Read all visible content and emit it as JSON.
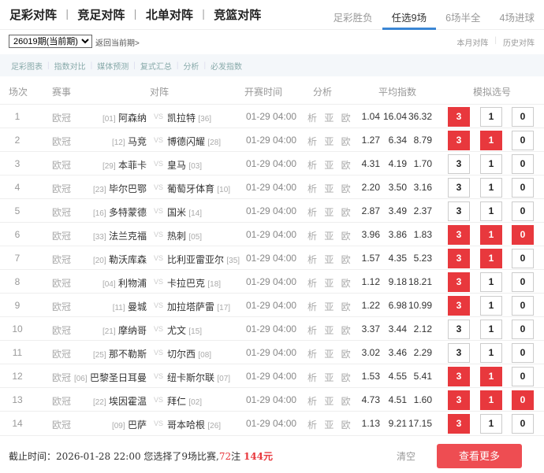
{
  "nav": {
    "main_tabs": [
      "足彩对阵",
      "竞足对阵",
      "北单对阵",
      "竞篮对阵"
    ],
    "sub_tabs": [
      "足彩胜负",
      "任选9场",
      "6场半全",
      "4场进球"
    ],
    "active_sub_tab": "任选9场"
  },
  "toolbar": {
    "period_select": "26019期(当前期)",
    "back_link": "返回当前期>",
    "links": [
      "本月对阵",
      "历史对阵"
    ]
  },
  "tools": [
    "足彩图表",
    "指数对比",
    "媒体预测",
    "复式汇总",
    "分析",
    "必发指数"
  ],
  "table": {
    "headers": [
      "场次",
      "赛事",
      "对阵",
      "开赛时间",
      "分析",
      "平均指数",
      "模拟选号"
    ],
    "vs": "VS",
    "analysis": "析 亚 欧",
    "options": [
      "3",
      "1",
      "0"
    ],
    "rows": [
      {
        "no": "1",
        "league": "欧冠",
        "home_rank": "[01]",
        "home": "阿森纳",
        "away": "凯拉特",
        "away_rank": "[36]",
        "time": "01-29 04:00",
        "odds": [
          "1.04",
          "16.04",
          "36.32"
        ],
        "selected": [
          "3"
        ]
      },
      {
        "no": "2",
        "league": "欧冠",
        "home_rank": "[12]",
        "home": "马竞",
        "away": "博德闪耀",
        "away_rank": "[28]",
        "time": "01-29 04:00",
        "odds": [
          "1.27",
          "6.34",
          "8.79"
        ],
        "selected": [
          "3",
          "1"
        ]
      },
      {
        "no": "3",
        "league": "欧冠",
        "home_rank": "[29]",
        "home": "本菲卡",
        "away": "皇马",
        "away_rank": "[03]",
        "time": "01-29 04:00",
        "odds": [
          "4.31",
          "4.19",
          "1.70"
        ],
        "selected": []
      },
      {
        "no": "4",
        "league": "欧冠",
        "home_rank": "[23]",
        "home": "毕尔巴鄂",
        "away": "葡萄牙体育",
        "away_rank": "[10]",
        "time": "01-29 04:00",
        "odds": [
          "2.20",
          "3.50",
          "3.16"
        ],
        "selected": []
      },
      {
        "no": "5",
        "league": "欧冠",
        "home_rank": "[16]",
        "home": "多特蒙德",
        "away": "国米",
        "away_rank": "[14]",
        "time": "01-29 04:00",
        "odds": [
          "2.87",
          "3.49",
          "2.37"
        ],
        "selected": []
      },
      {
        "no": "6",
        "league": "欧冠",
        "home_rank": "[33]",
        "home": "法兰克福",
        "away": "热刺",
        "away_rank": "[05]",
        "time": "01-29 04:00",
        "odds": [
          "3.96",
          "3.86",
          "1.83"
        ],
        "selected": [
          "3",
          "1",
          "0"
        ]
      },
      {
        "no": "7",
        "league": "欧冠",
        "home_rank": "[20]",
        "home": "勒沃库森",
        "away": "比利亚雷亚尔",
        "away_rank": "[35]",
        "time": "01-29 04:00",
        "odds": [
          "1.57",
          "4.35",
          "5.23"
        ],
        "selected": [
          "3",
          "1"
        ]
      },
      {
        "no": "8",
        "league": "欧冠",
        "home_rank": "[04]",
        "home": "利物浦",
        "away": "卡拉巴克",
        "away_rank": "[18]",
        "time": "01-29 04:00",
        "odds": [
          "1.12",
          "9.18",
          "18.21"
        ],
        "selected": [
          "3"
        ]
      },
      {
        "no": "9",
        "league": "欧冠",
        "home_rank": "[11]",
        "home": "曼城",
        "away": "加拉塔萨雷",
        "away_rank": "[17]",
        "time": "01-29 04:00",
        "odds": [
          "1.22",
          "6.98",
          "10.99"
        ],
        "selected": [
          "3"
        ]
      },
      {
        "no": "10",
        "league": "欧冠",
        "home_rank": "[21]",
        "home": "摩纳哥",
        "away": "尤文",
        "away_rank": "[15]",
        "time": "01-29 04:00",
        "odds": [
          "3.37",
          "3.44",
          "2.12"
        ],
        "selected": []
      },
      {
        "no": "11",
        "league": "欧冠",
        "home_rank": "[25]",
        "home": "那不勒斯",
        "away": "切尔西",
        "away_rank": "[08]",
        "time": "01-29 04:00",
        "odds": [
          "3.02",
          "3.46",
          "2.29"
        ],
        "selected": []
      },
      {
        "no": "12",
        "league": "欧冠",
        "home_rank": "[06]",
        "home": "巴黎圣日耳曼",
        "away": "纽卡斯尔联",
        "away_rank": "[07]",
        "time": "01-29 04:00",
        "odds": [
          "1.53",
          "4.55",
          "5.41"
        ],
        "selected": [
          "3",
          "1"
        ]
      },
      {
        "no": "13",
        "league": "欧冠",
        "home_rank": "[22]",
        "home": "埃因霍温",
        "away": "拜仁",
        "away_rank": "[02]",
        "time": "01-29 04:00",
        "odds": [
          "4.73",
          "4.51",
          "1.60"
        ],
        "selected": [
          "3",
          "1",
          "0"
        ]
      },
      {
        "no": "14",
        "league": "欧冠",
        "home_rank": "[09]",
        "home": "巴萨",
        "away": "哥本哈根",
        "away_rank": "[26]",
        "time": "01-29 04:00",
        "odds": [
          "1.13",
          "9.21",
          "17.15"
        ],
        "selected": [
          "3"
        ]
      }
    ]
  },
  "footer": {
    "prefix": "截止时间：2026-01-28 22:00 您选择了9场比赛,",
    "bets": "72",
    "bets_unit": "注 ",
    "amount": "144元",
    "clear": "清空",
    "more": "查看更多"
  },
  "colors": {
    "accent": "#e8383d",
    "tab_underline": "#3a86d4"
  }
}
